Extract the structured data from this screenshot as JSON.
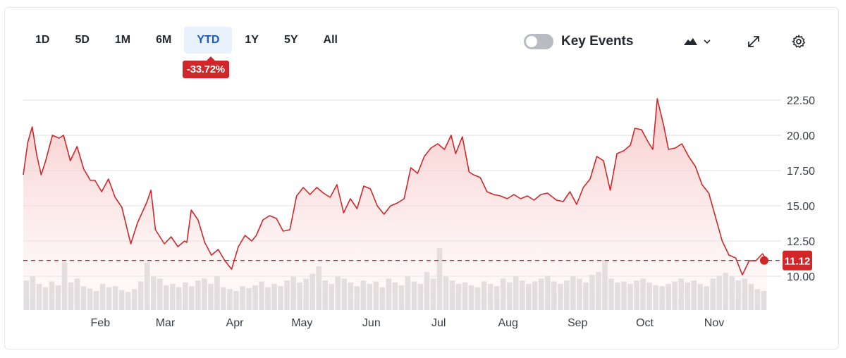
{
  "ranges": [
    "1D",
    "5D",
    "1M",
    "6M",
    "YTD",
    "1Y",
    "5Y",
    "All"
  ],
  "active_range": "YTD",
  "change_badge": "-33.72%",
  "key_events": {
    "label": "Key Events",
    "enabled": false
  },
  "icons": {
    "chart_type": "mountain-chart-icon",
    "expand": "expand-icon",
    "settings": "gear-icon"
  },
  "colors": {
    "line": "#d0272a",
    "fill_top": "#f7c6c6",
    "volume": "#d6d8dc",
    "gridline": "#dcdfe3",
    "accent": "#1a59c9"
  },
  "chart_data": {
    "type": "area",
    "ylim": [
      8.5,
      24
    ],
    "yticks": [
      "22.50",
      "20.00",
      "17.50",
      "15.00",
      "12.50",
      "10.00"
    ],
    "ytick_values": [
      22.5,
      20,
      17.5,
      15,
      12.5,
      10
    ],
    "xtick_labels": [
      "Feb",
      "Mar",
      "Apr",
      "May",
      "Jun",
      "Jul",
      "Aug",
      "Sep",
      "Oct",
      "Nov"
    ],
    "xtick_dates": [
      "2024-02-01",
      "2024-03-01",
      "2024-04-01",
      "2024-05-01",
      "2024-06-01",
      "2024-07-01",
      "2024-08-01",
      "2024-09-01",
      "2024-10-01",
      "2024-11-01"
    ],
    "last_price": 11.12,
    "grid": true,
    "series": [
      {
        "x": [
          "2024-01-02",
          "2024-01-04",
          "2024-01-06",
          "2024-01-08",
          "2024-01-10",
          "2024-01-12",
          "2024-01-15",
          "2024-01-18",
          "2024-01-20",
          "2024-01-23",
          "2024-01-26",
          "2024-01-29",
          "2024-02-01",
          "2024-02-03",
          "2024-02-06",
          "2024-02-09",
          "2024-02-12",
          "2024-02-15",
          "2024-02-19",
          "2024-02-22",
          "2024-02-26",
          "2024-02-28",
          "2024-03-01",
          "2024-03-05",
          "2024-03-08",
          "2024-03-11",
          "2024-03-14",
          "2024-03-15",
          "2024-03-17",
          "2024-03-20",
          "2024-03-23",
          "2024-03-26",
          "2024-03-29",
          "2024-04-01",
          "2024-04-04",
          "2024-04-07",
          "2024-04-10",
          "2024-04-13",
          "2024-04-15",
          "2024-04-18",
          "2024-04-21",
          "2024-04-24",
          "2024-04-27",
          "2024-04-30",
          "2024-05-03",
          "2024-05-06",
          "2024-05-09",
          "2024-05-12",
          "2024-05-15",
          "2024-05-18",
          "2024-05-21",
          "2024-05-24",
          "2024-05-27",
          "2024-05-30",
          "2024-06-02",
          "2024-06-05",
          "2024-06-08",
          "2024-06-11",
          "2024-06-14",
          "2024-06-17",
          "2024-06-20",
          "2024-06-23",
          "2024-06-26",
          "2024-06-29",
          "2024-07-02",
          "2024-07-05",
          "2024-07-08",
          "2024-07-11",
          "2024-07-13",
          "2024-07-16",
          "2024-07-19",
          "2024-07-21",
          "2024-07-24",
          "2024-07-27",
          "2024-07-30",
          "2024-08-02",
          "2024-08-05",
          "2024-08-08",
          "2024-08-11",
          "2024-08-14",
          "2024-08-17",
          "2024-08-20",
          "2024-08-23",
          "2024-08-27",
          "2024-08-30",
          "2024-09-02",
          "2024-09-05",
          "2024-09-08",
          "2024-09-11",
          "2024-09-14",
          "2024-09-17",
          "2024-09-20",
          "2024-09-23",
          "2024-09-26",
          "2024-09-29",
          "2024-10-01",
          "2024-10-04",
          "2024-10-07",
          "2024-10-09",
          "2024-10-11",
          "2024-10-14",
          "2024-10-16",
          "2024-10-19",
          "2024-10-22",
          "2024-10-25",
          "2024-10-28",
          "2024-10-31",
          "2024-11-03",
          "2024-11-06",
          "2024-11-09",
          "2024-11-12",
          "2024-11-15",
          "2024-11-18",
          "2024-11-21",
          "2024-11-24",
          "2024-11-27",
          "2024-11-29"
        ],
        "values": [
          17.2,
          19.5,
          20.6,
          18.6,
          17.2,
          18.2,
          20.0,
          19.8,
          20.0,
          18.2,
          19.2,
          17.6,
          16.8,
          16.8,
          16.0,
          16.9,
          15.6,
          14.9,
          12.3,
          13.8,
          15.2,
          16.1,
          13.3,
          12.3,
          12.8,
          12.1,
          12.5,
          12.4,
          14.7,
          14.0,
          12.4,
          11.5,
          11.9,
          11.1,
          10.5,
          12.1,
          12.9,
          12.5,
          12.9,
          14.0,
          14.3,
          14.1,
          13.2,
          13.3,
          15.7,
          16.3,
          15.8,
          16.3,
          15.9,
          15.6,
          16.5,
          14.5,
          15.5,
          14.8,
          16.4,
          16.2,
          15.0,
          14.4,
          15.0,
          15.2,
          15.5,
          17.7,
          17.3,
          18.5,
          19.1,
          19.4,
          19.0,
          20.0,
          18.7,
          19.9,
          17.4,
          17.2,
          17.0,
          16.0,
          15.8,
          15.7,
          15.5,
          15.8,
          15.5,
          15.7,
          15.4,
          15.8,
          15.9,
          15.4,
          15.3,
          16.0,
          15.1,
          16.3,
          16.9,
          18.5,
          18.2,
          16.1,
          18.7,
          18.9,
          19.3,
          20.5,
          20.4,
          19.5,
          19.0,
          22.6,
          20.6,
          19.0,
          19.1,
          19.4,
          18.5,
          17.8,
          16.5,
          15.9,
          14.2,
          12.5,
          11.5,
          11.3,
          10.1,
          11.1,
          11.1,
          11.6,
          11.12
        ]
      }
    ],
    "volume": [
      0.62,
      0.7,
      0.55,
      0.48,
      0.6,
      0.52,
      1.0,
      0.58,
      0.66,
      0.5,
      0.45,
      0.4,
      0.55,
      0.48,
      0.5,
      0.42,
      0.38,
      0.44,
      0.6,
      1.0,
      0.7,
      0.66,
      0.52,
      0.55,
      0.48,
      0.58,
      0.5,
      0.62,
      0.66,
      0.55,
      0.7,
      0.48,
      0.44,
      0.4,
      0.5,
      0.46,
      0.52,
      0.6,
      0.48,
      0.55,
      0.5,
      0.62,
      0.7,
      0.58,
      0.66,
      0.76,
      0.92,
      0.62,
      0.55,
      0.7,
      0.66,
      0.58,
      0.5,
      0.62,
      0.55,
      0.6,
      0.48,
      0.66,
      0.58,
      0.52,
      0.7,
      0.6,
      0.55,
      0.8,
      0.66,
      1.3,
      0.7,
      0.62,
      0.55,
      0.58,
      0.52,
      0.48,
      0.6,
      0.55,
      0.5,
      0.66,
      0.58,
      0.7,
      0.62,
      0.55,
      0.6,
      0.66,
      0.72,
      0.6,
      0.55,
      0.62,
      0.7,
      0.66,
      0.58,
      0.74,
      0.8,
      1.05,
      0.66,
      0.58,
      0.6,
      0.55,
      0.62,
      0.66,
      0.58,
      0.52,
      0.5,
      0.55,
      0.6,
      0.66,
      0.58,
      0.62,
      0.55,
      0.5,
      0.66,
      0.72,
      0.78,
      0.7,
      0.62,
      0.66,
      0.55,
      0.44,
      0.4
    ]
  }
}
